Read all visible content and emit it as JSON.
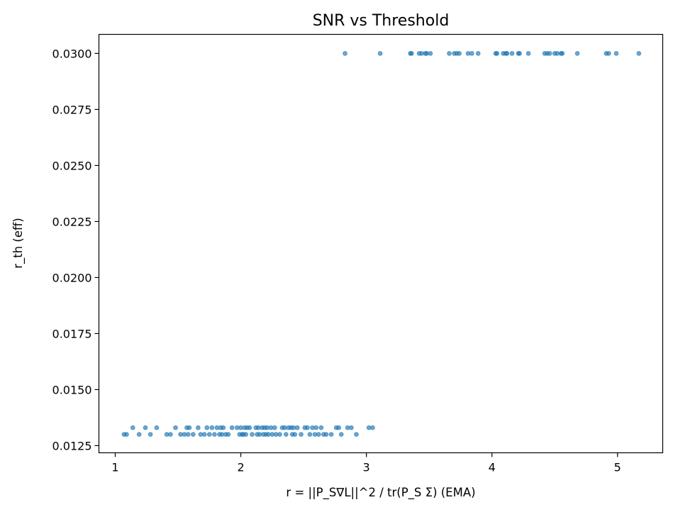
{
  "chart_data": {
    "type": "scatter",
    "title": "SNR vs Threshold",
    "xlabel": "r = ||P_S∇L||^2 / tr(P_S Σ) (EMA)",
    "ylabel": "r_th (eff)",
    "xlim": [
      0.87,
      5.36
    ],
    "ylim": [
      0.01218,
      0.03085
    ],
    "x_ticks": [
      1,
      2,
      3,
      4,
      5
    ],
    "x_tick_labels": [
      "1",
      "2",
      "3",
      "4",
      "5"
    ],
    "y_ticks": [
      0.0125,
      0.015,
      0.0175,
      0.02,
      0.0225,
      0.025,
      0.0275,
      0.03
    ],
    "y_tick_labels": [
      "0.0125",
      "0.0150",
      "0.0175",
      "0.0200",
      "0.0225",
      "0.0250",
      "0.0275",
      "0.0300"
    ],
    "grid": false,
    "color": "#1f77b4",
    "series": [
      {
        "points": [
          [
            2.83,
            0.03
          ],
          [
            3.11,
            0.03
          ],
          [
            3.35,
            0.03
          ],
          [
            3.36,
            0.03
          ],
          [
            3.42,
            0.03
          ],
          [
            3.44,
            0.03
          ],
          [
            3.47,
            0.03
          ],
          [
            3.48,
            0.03
          ],
          [
            3.51,
            0.03
          ],
          [
            3.66,
            0.03
          ],
          [
            3.7,
            0.03
          ],
          [
            3.72,
            0.03
          ],
          [
            3.74,
            0.03
          ],
          [
            3.81,
            0.03
          ],
          [
            3.84,
            0.03
          ],
          [
            3.89,
            0.03
          ],
          [
            4.03,
            0.03
          ],
          [
            4.04,
            0.03
          ],
          [
            4.09,
            0.03
          ],
          [
            4.11,
            0.03
          ],
          [
            4.12,
            0.03
          ],
          [
            4.16,
            0.03
          ],
          [
            4.21,
            0.03
          ],
          [
            4.22,
            0.03
          ],
          [
            4.29,
            0.03
          ],
          [
            4.42,
            0.03
          ],
          [
            4.44,
            0.03
          ],
          [
            4.46,
            0.03
          ],
          [
            4.5,
            0.03
          ],
          [
            4.52,
            0.03
          ],
          [
            4.55,
            0.03
          ],
          [
            4.56,
            0.03
          ],
          [
            4.68,
            0.03
          ],
          [
            4.91,
            0.03
          ],
          [
            4.93,
            0.03
          ],
          [
            4.99,
            0.03
          ],
          [
            5.17,
            0.03
          ],
          [
            1.07,
            0.013
          ],
          [
            1.09,
            0.013
          ],
          [
            1.14,
            0.0133
          ],
          [
            1.19,
            0.013
          ],
          [
            1.24,
            0.0133
          ],
          [
            1.28,
            0.013
          ],
          [
            1.33,
            0.0133
          ],
          [
            1.41,
            0.013
          ],
          [
            1.44,
            0.013
          ],
          [
            1.48,
            0.0133
          ],
          [
            1.52,
            0.013
          ],
          [
            1.55,
            0.013
          ],
          [
            1.57,
            0.0133
          ],
          [
            1.58,
            0.013
          ],
          [
            1.59,
            0.0133
          ],
          [
            1.62,
            0.013
          ],
          [
            1.66,
            0.0133
          ],
          [
            1.68,
            0.013
          ],
          [
            1.71,
            0.013
          ],
          [
            1.73,
            0.0133
          ],
          [
            1.75,
            0.013
          ],
          [
            1.77,
            0.0133
          ],
          [
            1.79,
            0.013
          ],
          [
            1.81,
            0.0133
          ],
          [
            1.83,
            0.013
          ],
          [
            1.84,
            0.0133
          ],
          [
            1.85,
            0.013
          ],
          [
            1.86,
            0.0133
          ],
          [
            1.88,
            0.013
          ],
          [
            1.9,
            0.013
          ],
          [
            1.93,
            0.0133
          ],
          [
            1.97,
            0.0133
          ],
          [
            1.99,
            0.013
          ],
          [
            2.0,
            0.0133
          ],
          [
            2.01,
            0.013
          ],
          [
            2.02,
            0.013
          ],
          [
            2.03,
            0.0133
          ],
          [
            2.04,
            0.013
          ],
          [
            2.05,
            0.0133
          ],
          [
            2.07,
            0.0133
          ],
          [
            2.09,
            0.013
          ],
          [
            2.12,
            0.0133
          ],
          [
            2.13,
            0.013
          ],
          [
            2.14,
            0.0133
          ],
          [
            2.15,
            0.013
          ],
          [
            2.17,
            0.0133
          ],
          [
            2.18,
            0.013
          ],
          [
            2.19,
            0.0133
          ],
          [
            2.2,
            0.013
          ],
          [
            2.21,
            0.0133
          ],
          [
            2.22,
            0.013
          ],
          [
            2.24,
            0.0133
          ],
          [
            2.25,
            0.013
          ],
          [
            2.27,
            0.0133
          ],
          [
            2.28,
            0.013
          ],
          [
            2.31,
            0.013
          ],
          [
            2.33,
            0.0133
          ],
          [
            2.35,
            0.0133
          ],
          [
            2.36,
            0.013
          ],
          [
            2.38,
            0.0133
          ],
          [
            2.4,
            0.0133
          ],
          [
            2.41,
            0.013
          ],
          [
            2.42,
            0.0133
          ],
          [
            2.43,
            0.013
          ],
          [
            2.45,
            0.0133
          ],
          [
            2.48,
            0.013
          ],
          [
            2.51,
            0.0133
          ],
          [
            2.53,
            0.0133
          ],
          [
            2.55,
            0.013
          ],
          [
            2.57,
            0.0133
          ],
          [
            2.59,
            0.013
          ],
          [
            2.6,
            0.0133
          ],
          [
            2.62,
            0.013
          ],
          [
            2.64,
            0.0133
          ],
          [
            2.66,
            0.013
          ],
          [
            2.68,
            0.013
          ],
          [
            2.72,
            0.013
          ],
          [
            2.76,
            0.0133
          ],
          [
            2.78,
            0.0133
          ],
          [
            2.8,
            0.013
          ],
          [
            2.85,
            0.0133
          ],
          [
            2.88,
            0.0133
          ],
          [
            2.92,
            0.013
          ],
          [
            3.02,
            0.0133
          ],
          [
            3.05,
            0.0133
          ]
        ]
      }
    ]
  }
}
